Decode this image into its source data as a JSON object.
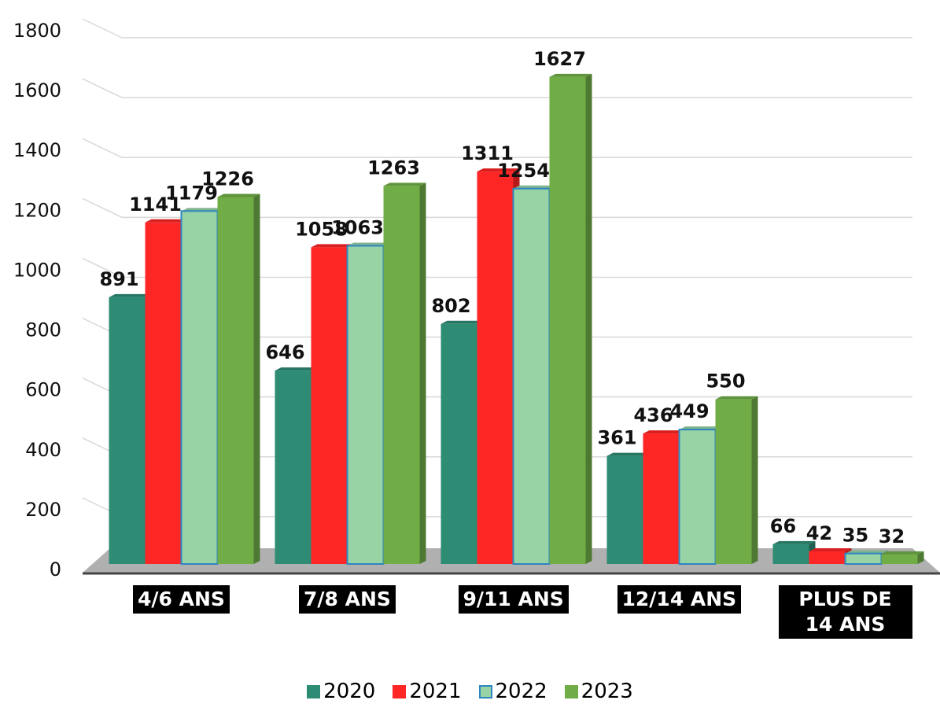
{
  "chart_data": {
    "type": "bar",
    "categories": [
      "4/6 ANS",
      "7/8 ANS",
      "9/11 ANS",
      "12/14 ANS",
      "PLUS DE 14 ANS"
    ],
    "series": [
      {
        "name": "2020",
        "color": "#2e8b74",
        "values": [
          891,
          646,
          802,
          361,
          66
        ]
      },
      {
        "name": "2021",
        "color": "#ff2626",
        "values": [
          1141,
          1058,
          1311,
          436,
          42
        ]
      },
      {
        "name": "2022",
        "color": "#98d3a6",
        "values": [
          1179,
          1063,
          1254,
          449,
          35
        ]
      },
      {
        "name": "2023",
        "color": "#70ad47",
        "values": [
          1226,
          1263,
          1627,
          550,
          32
        ]
      }
    ],
    "ylim": [
      0,
      1800
    ],
    "yticks": [
      0,
      200,
      400,
      600,
      800,
      1000,
      1200,
      1400,
      1600,
      1800
    ],
    "grid": true
  }
}
